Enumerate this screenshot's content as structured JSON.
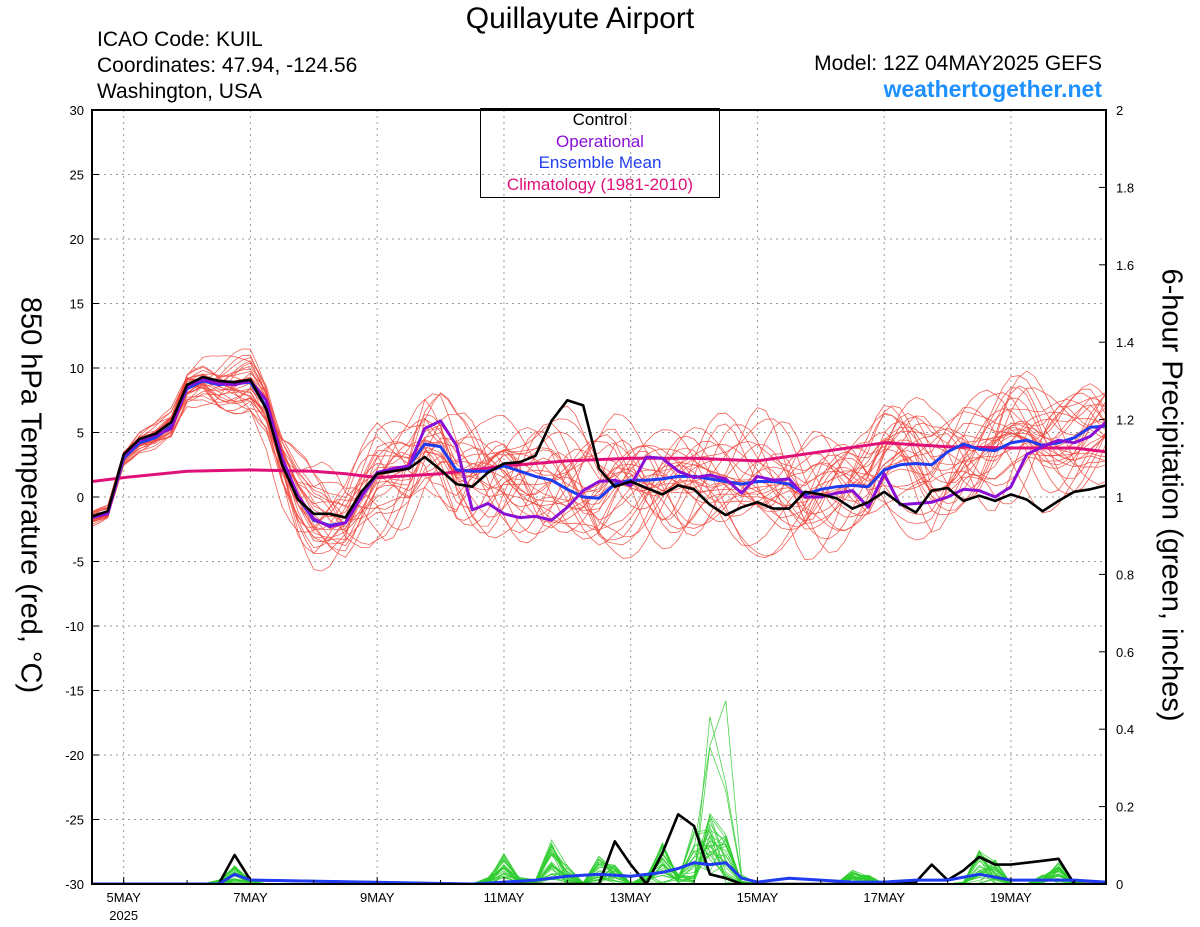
{
  "header": {
    "title": "Quillayute Airport",
    "icao": "ICAO Code: KUIL",
    "coords": "Coordinates: 47.94, -124.56",
    "location": "Washington, USA",
    "model": "Model: 12Z 04MAY2025 GEFS",
    "site": "weathertogether.net"
  },
  "legend": {
    "items": [
      {
        "label": "Control",
        "color": "#000000"
      },
      {
        "label": "Operational",
        "color": "#8a0fd6"
      },
      {
        "label": "Ensemble Mean",
        "color": "#1f3cf0"
      },
      {
        "label": "Climatology (1981-2010)",
        "color": "#e0107a"
      }
    ]
  },
  "colors": {
    "member_temp": "#f0463c",
    "member_precip": "#2ecc2e",
    "control": "#000000",
    "operational": "#8a0fd6",
    "mean": "#1f3cf0",
    "climatology": "#e0107a",
    "grid": "#999999"
  },
  "chart_data": {
    "type": "line",
    "xlabel": "",
    "ylabel_left": "850 hPa Temperature (red, °C)",
    "ylabel_right": "6-hour Precipitation (green, inches)",
    "x_unit": "days after 00Z 4 May 2025",
    "xlim": [
      0.5,
      16.5
    ],
    "ylim_left": [
      -30,
      30
    ],
    "ylim_right": [
      0,
      2
    ],
    "left_ticks": [
      -30,
      -25,
      -20,
      -15,
      -10,
      -5,
      0,
      5,
      10,
      15,
      20,
      25,
      30
    ],
    "right_ticks": [
      0,
      0.2,
      0.4,
      0.6,
      0.8,
      1,
      1.2,
      1.4,
      1.6,
      1.8,
      2
    ],
    "x_ticks": [
      {
        "x": 1,
        "label": "5MAY",
        "sub": "2025"
      },
      {
        "x": 3,
        "label": "7MAY",
        "sub": ""
      },
      {
        "x": 5,
        "label": "9MAY",
        "sub": ""
      },
      {
        "x": 7,
        "label": "11MAY",
        "sub": ""
      },
      {
        "x": 9,
        "label": "13MAY",
        "sub": ""
      },
      {
        "x": 11,
        "label": "15MAY",
        "sub": ""
      },
      {
        "x": 13,
        "label": "17MAY",
        "sub": ""
      },
      {
        "x": 15,
        "label": "19MAY",
        "sub": ""
      }
    ],
    "grid": true,
    "series": [
      {
        "name": "Climatology (1981-2010)",
        "axis": "left",
        "x": [
          0.5,
          1,
          2,
          3,
          4,
          4.5,
          5,
          6,
          7,
          8,
          9,
          10,
          11,
          12,
          13,
          14,
          15,
          16,
          16.5
        ],
        "y": [
          1.2,
          1.5,
          2.0,
          2.1,
          2.0,
          1.8,
          1.5,
          1.8,
          2.4,
          2.8,
          3.0,
          3.0,
          2.8,
          3.5,
          4.2,
          3.9,
          3.8,
          3.8,
          3.5
        ]
      },
      {
        "name": "Ensemble Mean",
        "axis": "left",
        "x": [
          0.5,
          0.75,
          1,
          1.25,
          1.5,
          1.75,
          2,
          2.25,
          2.5,
          2.75,
          3,
          3.25,
          3.5,
          3.75,
          4,
          4.25,
          4.5,
          4.75,
          5,
          5.25,
          5.5,
          5.75,
          6,
          6.25,
          6.5,
          6.75,
          7,
          7.25,
          7.5,
          7.75,
          8,
          8.25,
          8.5,
          8.75,
          9,
          9.25,
          9.5,
          9.75,
          10,
          10.25,
          10.5,
          10.75,
          11,
          11.25,
          11.5,
          11.75,
          12,
          12.25,
          12.5,
          12.75,
          13,
          13.25,
          13.5,
          13.75,
          14,
          14.25,
          14.5,
          14.75,
          15,
          15.25,
          15.5,
          15.75,
          16,
          16.25,
          16.5
        ],
        "y": [
          -1.6,
          -1.2,
          3.0,
          4.2,
          4.6,
          5.5,
          8.4,
          9.0,
          8.7,
          8.8,
          8.9,
          7.0,
          2.8,
          0.0,
          -1.8,
          -2.2,
          -2.0,
          0.0,
          1.8,
          2.1,
          2.4,
          4.1,
          3.9,
          2.1,
          2.0,
          2.0,
          2.4,
          2.0,
          1.6,
          1.3,
          0.6,
          0.0,
          -0.1,
          1.0,
          1.3,
          1.3,
          1.4,
          1.6,
          1.6,
          1.4,
          1.2,
          1.0,
          1.2,
          1.2,
          1.0,
          0.2,
          0.6,
          0.8,
          0.9,
          0.8,
          2.1,
          2.5,
          2.6,
          2.5,
          3.5,
          4.1,
          3.7,
          3.6,
          4.2,
          4.4,
          4.0,
          4.2,
          4.6,
          5.4,
          5.5
        ]
      },
      {
        "name": "Operational",
        "axis": "left",
        "x": [
          0.5,
          0.75,
          1,
          1.25,
          1.5,
          1.75,
          2,
          2.25,
          2.5,
          2.75,
          3,
          3.25,
          3.5,
          3.75,
          4,
          4.25,
          4.5,
          4.75,
          5,
          5.25,
          5.5,
          5.75,
          6,
          6.25,
          6.5,
          6.75,
          7,
          7.25,
          7.5,
          7.75,
          8,
          8.25,
          8.5,
          8.75,
          9,
          9.25,
          9.5,
          9.75,
          10,
          10.25,
          10.5,
          10.75,
          11,
          11.25,
          11.5,
          11.75,
          12,
          12.25,
          12.5,
          12.75,
          13,
          13.25,
          13.5,
          13.75,
          14,
          14.25,
          14.5,
          14.75,
          15,
          15.25,
          15.5,
          15.75,
          16,
          16.25,
          16.5
        ],
        "y": [
          -1.6,
          -1.3,
          3.2,
          4.4,
          4.8,
          5.3,
          8.6,
          9.1,
          8.8,
          8.7,
          9.0,
          7.5,
          3.0,
          0.1,
          -1.7,
          -2.3,
          -2.0,
          0.0,
          1.9,
          2.2,
          2.4,
          5.3,
          5.9,
          4.0,
          -1.0,
          -0.5,
          -1.3,
          -1.6,
          -1.5,
          -1.8,
          -0.8,
          0.5,
          1.2,
          1.3,
          0.9,
          3.1,
          3.0,
          2.0,
          1.5,
          1.7,
          1.4,
          0.3,
          1.6,
          1.3,
          1.4,
          0.0,
          0.0,
          0.3,
          0.5,
          -0.8,
          1.8,
          -0.6,
          -0.5,
          -0.4,
          0.0,
          0.6,
          0.5,
          0.0,
          0.8,
          3.3,
          3.9,
          4.4,
          4.2,
          4.7,
          5.8
        ]
      },
      {
        "name": "Control",
        "axis": "left",
        "x": [
          0.5,
          0.75,
          1,
          1.25,
          1.5,
          1.75,
          2,
          2.25,
          2.5,
          2.75,
          3,
          3.25,
          3.5,
          3.75,
          4,
          4.25,
          4.5,
          4.75,
          5,
          5.25,
          5.5,
          5.75,
          6,
          6.25,
          6.5,
          6.75,
          7,
          7.25,
          7.5,
          7.75,
          8,
          8.25,
          8.5,
          8.75,
          9,
          9.25,
          9.5,
          9.75,
          10,
          10.25,
          10.5,
          10.75,
          11,
          11.25,
          11.5,
          11.75,
          12,
          12.25,
          12.5,
          12.75,
          13,
          13.25,
          13.5,
          13.75,
          14,
          14.25,
          14.5,
          14.75,
          15,
          15.25,
          15.5,
          15.75,
          16,
          16.25,
          16.5
        ],
        "y": [
          -1.5,
          -1.1,
          3.3,
          4.5,
          4.9,
          5.8,
          8.7,
          9.3,
          9.0,
          8.9,
          9.1,
          6.8,
          2.5,
          -0.2,
          -1.3,
          -1.3,
          -1.6,
          0.4,
          1.8,
          2.0,
          2.2,
          3.1,
          2.1,
          1.0,
          0.8,
          1.9,
          2.6,
          2.7,
          3.2,
          5.9,
          7.5,
          7.1,
          2.2,
          0.8,
          1.2,
          0.7,
          0.2,
          0.9,
          0.6,
          -0.6,
          -1.4,
          -0.8,
          -0.4,
          -0.9,
          -0.9,
          0.4,
          0.2,
          -0.1,
          -0.9,
          -0.4,
          0.4,
          -0.5,
          -1.2,
          0.5,
          0.7,
          -0.3,
          0.1,
          -0.3,
          0.2,
          -0.2,
          -1.1,
          -0.3,
          0.4,
          0.6,
          0.9
        ]
      },
      {
        "name": "Control precipitation",
        "axis": "right",
        "x": [
          0.5,
          2.5,
          2.75,
          3,
          6.5,
          8.5,
          8.75,
          9,
          9.25,
          9.5,
          9.75,
          10,
          10.25,
          10.5,
          10.75,
          13,
          13.5,
          13.75,
          14,
          14.25,
          14.5,
          14.75,
          15,
          15.25,
          15.5,
          15.75,
          16,
          16.25,
          16.5
        ],
        "y": [
          0,
          0,
          0.075,
          0.01,
          0,
          0,
          0.11,
          0.05,
          0,
          0.08,
          0.18,
          0.15,
          0.025,
          0.015,
          0,
          0,
          0.005,
          0.05,
          0.01,
          0.035,
          0.07,
          0.05,
          0.05,
          0.055,
          0.06,
          0.065,
          0,
          0,
          0
        ]
      },
      {
        "name": "Ensemble mean precipitation",
        "axis": "right",
        "x": [
          0.5,
          2.5,
          2.75,
          3,
          6.5,
          7,
          7.5,
          8,
          8.5,
          9,
          9.5,
          9.75,
          10,
          10.25,
          10.5,
          10.75,
          11,
          11.5,
          12,
          12.5,
          13,
          13.5,
          14,
          14.5,
          15,
          15.5,
          16,
          16.5
        ],
        "y": [
          0,
          0,
          0.025,
          0.01,
          0,
          0.005,
          0.01,
          0.02,
          0.025,
          0.02,
          0.03,
          0.04,
          0.055,
          0.05,
          0.055,
          0.015,
          0.005,
          0.015,
          0.01,
          0.005,
          0.005,
          0.01,
          0.01,
          0.025,
          0.01,
          0.01,
          0.01,
          0.005
        ]
      }
    ],
    "members_count": 30
  }
}
